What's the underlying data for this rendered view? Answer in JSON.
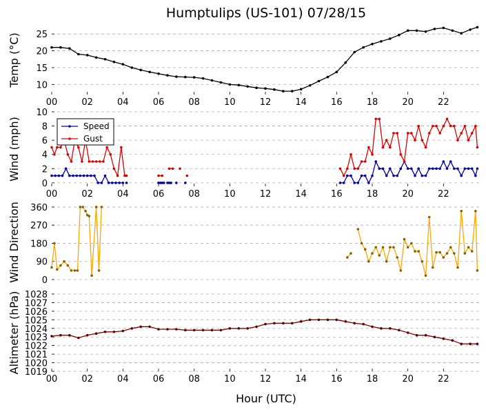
{
  "title": "Humptulips (US-101) 07/28/15",
  "xlabel": "Hour (UTC)",
  "x_tick_labels": [
    "00",
    "02",
    "04",
    "06",
    "08",
    "10",
    "12",
    "14",
    "16",
    "18",
    "20",
    "22"
  ],
  "colors": {
    "temp": "#000000",
    "speed": "#0000aa",
    "gust": "#dd0000",
    "direction": "#ffa500",
    "altimeter": "#8b0000",
    "grid": "#b0b0b0"
  },
  "chart_data": [
    {
      "type": "line",
      "ylabel": "Temp (°C)",
      "ylim": [
        7,
        27.5
      ],
      "yticks": [
        10,
        15,
        20,
        25
      ],
      "xlim": [
        0,
        24
      ],
      "grid": "horizontal dashed",
      "series": [
        {
          "x": [
            0,
            0.5,
            1,
            1.5,
            2,
            2.5,
            3,
            3.5,
            4,
            4.5,
            5,
            5.5,
            6,
            6.5,
            7,
            7.5,
            8,
            8.5,
            9,
            9.5,
            10,
            10.5,
            11,
            11.5,
            12,
            12.5,
            13,
            13.5,
            14,
            14.5,
            15,
            15.5,
            16,
            16.5,
            17,
            17.5,
            18,
            18.5,
            19,
            19.5,
            20,
            20.5,
            21,
            21.5,
            22,
            22.5,
            23,
            23.5,
            23.9
          ],
          "values": [
            21,
            21,
            20.7,
            19,
            18.7,
            18,
            17.5,
            16.7,
            16,
            15,
            14.3,
            13.7,
            13.2,
            12.7,
            12.3,
            12.2,
            12.1,
            11.8,
            11.2,
            10.6,
            10,
            9.8,
            9.4,
            9,
            8.8,
            8.5,
            8,
            8,
            8.6,
            9.7,
            11,
            12.2,
            13.7,
            16.5,
            19.6,
            21,
            22,
            22.8,
            23.6,
            24.7,
            26,
            26,
            25.7,
            26.5,
            26.8,
            26,
            25.2,
            26.3,
            27
          ]
        }
      ]
    },
    {
      "type": "line",
      "ylabel": "Wind (mph)",
      "ylim": [
        -0.5,
        10
      ],
      "yticks": [
        0,
        2,
        4,
        6,
        8,
        10
      ],
      "xlim": [
        0,
        24
      ],
      "grid": "horizontal dashed",
      "legend": "top-left",
      "series": [
        {
          "name": "Speed",
          "segments": [
            {
              "x": [
                0,
                0.2,
                0.4,
                0.6,
                0.8,
                1.0,
                1.2,
                1.4,
                1.6,
                1.8,
                2.0,
                2.2,
                2.4,
                2.6,
                2.8,
                3.0,
                3.2,
                3.4,
                3.6,
                3.8,
                4.0
              ],
              "values": [
                1,
                1,
                1,
                1,
                2,
                1,
                1,
                1,
                1,
                1,
                1,
                1,
                1,
                0,
                0,
                1,
                0,
                0,
                0,
                0,
                0
              ]
            },
            {
              "x": [
                4.2
              ],
              "values": [
                0
              ]
            },
            {
              "x": [
                6.0,
                6.1,
                6.2,
                6.3
              ],
              "values": [
                0,
                0,
                0,
                0
              ]
            },
            {
              "x": [
                6.5,
                6.6,
                6.7
              ],
              "values": [
                0,
                0,
                0
              ]
            },
            {
              "x": [
                7.0
              ],
              "values": [
                0
              ]
            },
            {
              "x": [
                7.5
              ],
              "values": [
                0
              ]
            },
            {
              "x": [
                16.2,
                16.4,
                16.6,
                16.8,
                17.0,
                17.2,
                17.4,
                17.6,
                17.8,
                18.0,
                18.2,
                18.4,
                18.6,
                18.8,
                19.0,
                19.2,
                19.4,
                19.6,
                19.8,
                20.0,
                20.2,
                20.4,
                20.6,
                20.8,
                21.0,
                21.2,
                21.4,
                21.6,
                21.8,
                22.0,
                22.2,
                22.4,
                22.6,
                22.8,
                23.0,
                23.2,
                23.4,
                23.6,
                23.8,
                23.9
              ],
              "values": [
                0,
                0,
                1,
                1,
                0,
                0,
                1,
                1,
                0,
                1,
                3,
                2,
                2,
                1,
                2,
                1,
                1,
                2,
                3,
                2,
                2,
                1,
                2,
                1,
                1,
                2,
                2,
                2,
                2,
                3,
                2,
                3,
                2,
                2,
                1,
                2,
                2,
                2,
                1,
                2
              ]
            }
          ]
        },
        {
          "name": "Gust",
          "segments": [
            {
              "x": [
                0,
                0.15,
                0.3,
                0.5,
                0.7,
                0.9,
                1.1,
                1.3,
                1.5,
                1.7,
                1.9,
                2.1,
                2.3,
                2.5,
                2.7,
                2.9,
                3.1,
                3.3,
                3.5,
                3.7,
                3.9,
                4.1,
                4.2
              ],
              "values": [
                5,
                4,
                5,
                5,
                6,
                4,
                3,
                6,
                5,
                3,
                6,
                3,
                3,
                3,
                3,
                3,
                5,
                4,
                2,
                1,
                5,
                1,
                1
              ]
            },
            {
              "x": [
                6.0,
                6.2
              ],
              "values": [
                1,
                1
              ]
            },
            {
              "x": [
                6.6,
                6.8
              ],
              "values": [
                2,
                2
              ]
            },
            {
              "x": [
                7.2
              ],
              "values": [
                2
              ]
            },
            {
              "x": [
                7.6
              ],
              "values": [
                1
              ]
            },
            {
              "x": [
                16.2,
                16.4,
                16.6,
                16.8,
                17.0,
                17.2,
                17.4,
                17.6,
                17.8,
                18.0,
                18.2,
                18.4,
                18.6,
                18.8,
                19.0,
                19.2,
                19.4,
                19.6,
                19.8,
                20.0,
                20.2,
                20.4,
                20.6,
                20.8,
                21.0,
                21.2,
                21.4,
                21.6,
                21.8,
                22.0,
                22.2,
                22.4,
                22.6,
                22.8,
                23.0,
                23.2,
                23.4,
                23.6,
                23.8,
                23.9
              ],
              "values": [
                2,
                1,
                2,
                4,
                2,
                2,
                3,
                3,
                5,
                4,
                9,
                9,
                5,
                6,
                5,
                7,
                7,
                4,
                3,
                7,
                7,
                6,
                8,
                6,
                5,
                7,
                8,
                8,
                7,
                8,
                9,
                8,
                8,
                6,
                7,
                8,
                6,
                7,
                8,
                5
              ]
            }
          ]
        }
      ]
    },
    {
      "type": "line",
      "ylabel": "Wind Direction",
      "ylim": [
        0,
        370
      ],
      "yticks": [
        0,
        90,
        180,
        270,
        360
      ],
      "xlim": [
        0,
        24
      ],
      "grid": "horizontal dashed",
      "series": [
        {
          "segments": [
            {
              "x": [
                0,
                0.15,
                0.3,
                0.5,
                0.7,
                0.9,
                1.1,
                1.3,
                1.45,
                1.6,
                1.75,
                1.9,
                2.0,
                2.1,
                2.25,
                2.5,
                2.65,
                2.8
              ],
              "values": [
                60,
                180,
                50,
                70,
                90,
                70,
                45,
                45,
                45,
                360,
                360,
                340,
                320,
                315,
                20,
                360,
                45,
                360
              ]
            },
            {
              "x": [
                16.6,
                16.8
              ],
              "values": [
                110,
                130
              ]
            },
            {
              "x": [
                17.2,
                17.4,
                17.6,
                17.8,
                18.0,
                18.2,
                18.4,
                18.6,
                18.8,
                19.0,
                19.2,
                19.4,
                19.6,
                19.8,
                20.0,
                20.2,
                20.4,
                20.6,
                20.8,
                21.0,
                21.2,
                21.4,
                21.6,
                21.8,
                22.0,
                22.2,
                22.4,
                22.6,
                22.8,
                23.0,
                23.2,
                23.4,
                23.6,
                23.8,
                23.9
              ],
              "values": [
                250,
                180,
                150,
                90,
                130,
                160,
                120,
                160,
                90,
                160,
                160,
                110,
                45,
                200,
                160,
                180,
                140,
                140,
                90,
                20,
                310,
                60,
                135,
                135,
                110,
                130,
                160,
                130,
                60,
                340,
                130,
                160,
                140,
                340,
                45
              ]
            }
          ]
        }
      ]
    },
    {
      "type": "line",
      "ylabel": "Altimeter (hPa)",
      "ylim": [
        1019,
        1028
      ],
      "yticks": [
        1019,
        1020,
        1021,
        1022,
        1023,
        1024,
        1025,
        1026,
        1027,
        1028
      ],
      "xlim": [
        0,
        24
      ],
      "grid": "horizontal dashed",
      "series": [
        {
          "x": [
            0,
            0.5,
            1,
            1.5,
            2,
            2.5,
            3,
            3.5,
            4,
            4.5,
            5,
            5.5,
            6,
            6.5,
            7,
            7.5,
            8,
            8.5,
            9,
            9.5,
            10,
            10.5,
            11,
            11.5,
            12,
            12.5,
            13,
            13.5,
            14,
            14.5,
            15,
            15.5,
            16,
            16.5,
            17,
            17.5,
            18,
            18.5,
            19,
            19.5,
            20,
            20.5,
            21,
            21.5,
            22,
            22.5,
            23,
            23.5,
            23.9
          ],
          "values": [
            1023.1,
            1023.2,
            1023.2,
            1022.9,
            1023.2,
            1023.4,
            1023.6,
            1023.6,
            1023.7,
            1024.0,
            1024.2,
            1024.2,
            1023.9,
            1023.9,
            1023.9,
            1023.8,
            1023.8,
            1023.8,
            1023.8,
            1023.8,
            1024.0,
            1024.0,
            1024.0,
            1024.2,
            1024.5,
            1024.6,
            1024.6,
            1024.6,
            1024.8,
            1025.0,
            1025.0,
            1025.0,
            1025.0,
            1024.8,
            1024.6,
            1024.5,
            1024.2,
            1024.0,
            1024.0,
            1023.8,
            1023.5,
            1023.2,
            1023.2,
            1023.0,
            1022.8,
            1022.6,
            1022.2,
            1022.2,
            1022.2
          ]
        }
      ]
    }
  ]
}
